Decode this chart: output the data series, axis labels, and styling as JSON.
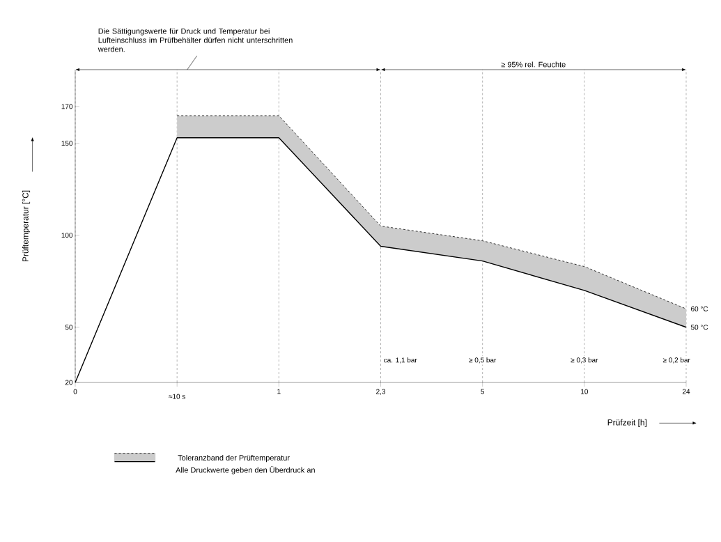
{
  "chart_data": {
    "type": "line",
    "xlabel": "Prüfzeit [h]",
    "ylabel": "Prüftemperatur [°C]",
    "categories": [
      "0",
      "≈10 s",
      "1",
      "2,3",
      "5",
      "10",
      "24"
    ],
    "series": [
      {
        "name": "Toleranzband der Prüftemperatur",
        "color": "#000000",
        "values": [
          20,
          153,
          153,
          94,
          86,
          70,
          50
        ],
        "lower": [
          null,
          153,
          153,
          94,
          86,
          70,
          50
        ],
        "upper": [
          null,
          165,
          165,
          105,
          97,
          83,
          60
        ]
      }
    ],
    "ylim": [
      20,
      190
    ],
    "yticks": [
      20,
      50,
      100,
      150,
      170
    ],
    "grid": "x",
    "legend": "bottom",
    "annotations": [
      "Die Sättigungswerte für Druck und Temperatur bei Lufteinschluss im Prüfbehälter dürfen nicht unterschritten werden.",
      "≥ 95% rel. Feuchte",
      "ca. 1,1 bar",
      "≥ 0,5 bar",
      "≥ 0,3 bar",
      "≥ 0,2 bar",
      {
        "text": "60 °C",
        "x": "24",
        "y": 60
      },
      {
        "text": "50 °C",
        "x": "24",
        "y": 50
      },
      "Alle Druckwerte geben den Überdruck an"
    ]
  }
}
